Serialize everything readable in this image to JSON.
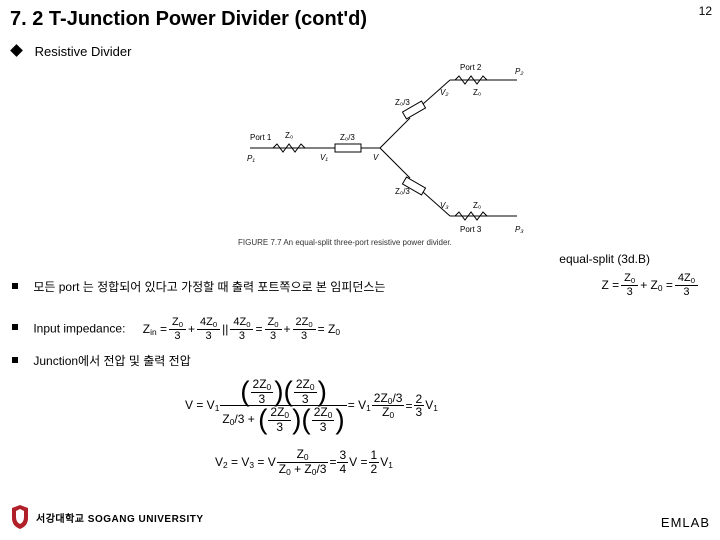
{
  "title": "7. 2 T-Junction Power Divider (cont'd)",
  "page_number": "12",
  "subheading": "Resistive Divider",
  "figure_caption": "FIGURE 7.7   An equal-split three-port resistive power divider.",
  "equal_split_label": "equal-split (3d.B)",
  "diagram_labels": {
    "port1": "Port 1",
    "port2": "Port 2",
    "port3": "Port 3",
    "p1": "P₁",
    "p2": "P₂",
    "p3": "P₃",
    "z0": "Z₀",
    "z03": "Z₀/3",
    "v": "V",
    "v1": "V₁",
    "v2": "V₂",
    "v3": "V₃"
  },
  "bullet1_text": "모든 port 는 정합되어 있다고 가정할 때 출력 포트쪽으로 본 임피던스는",
  "bullet1_eq_html": "<span class='eq'>Z = </span><span class='frac'><span class='n'>Z<sub>0</sub></span><span class='d'>3</span></span><span class='eq'> + Z<sub>0</sub> = </span><span class='frac'><span class='n'>4Z<sub>0</sub></span><span class='d'>3</span></span>",
  "bullet2_text": "Input impedance:",
  "bullet2_eq_html": "<span class='eq'>Z<sub>in</sub> = </span><span class='frac'><span class='n'>Z<sub>0</sub></span><span class='d'>3</span></span><span class='eq'> + </span><span class='frac'><span class='n'>4Z<sub>0</sub></span><span class='d'>3</span></span><span class='eq'> || </span><span class='frac'><span class='n'>4Z<sub>0</sub></span><span class='d'>3</span></span><span class='eq'> = </span><span class='frac'><span class='n'>Z<sub>0</sub></span><span class='d'>3</span></span><span class='eq'> + </span><span class='frac'><span class='n'>2Z<sub>0</sub></span><span class='d'>3</span></span><span class='eq'> = Z<sub>0</sub></span>",
  "bullet3_text": "Junction에서 전압 및 출력 전압",
  "eqV_html": "<span class='eq'>V = V<sub>1</sub> </span><span class='lfrac'><span class='n'><span class='paren'>(</span><span class='lfrac'><span class='n'>2Z<sub>0</sub></span><span class='d'>3</span></span><span class='paren'>)(</span><span class='lfrac'><span class='n'>2Z<sub>0</sub></span><span class='d'>3</span></span><span class='paren'>)</span></span><span class='d'>Z<sub>0</sub>/3 + <span class='paren'>(</span><span class='lfrac'><span class='n'>2Z<sub>0</sub></span><span class='d'>3</span></span><span class='paren'>)(</span><span class='lfrac'><span class='n'>2Z<sub>0</sub></span><span class='d'>3</span></span><span class='paren'>)</span></span></span><span class='eq'> = V<sub>1</sub> </span><span class='lfrac'><span class='n'>2Z<sub>0</sub>/3</span><span class='d'>Z<sub>0</sub></span></span><span class='eq'> = </span><span class='lfrac'><span class='n'>2</span><span class='d'>3</span></span><span class='eq'> V<sub>1</sub></span>",
  "eqV2_html": "<span class='eq'>V<sub>2</sub> = V<sub>3</sub> = V </span><span class='lfrac'><span class='n'>Z<sub>0</sub></span><span class='d'>Z<sub>0</sub> + Z<sub>0</sub>/3</span></span><span class='eq'> = </span><span class='lfrac'><span class='n'>3</span><span class='d'>4</span></span><span class='eq'> V = </span><span class='lfrac'><span class='n'>1</span><span class='d'>2</span></span><span class='eq'> V<sub>1</sub></span>",
  "footer": {
    "university": "서강대학교 SOGANG UNIVERSITY",
    "lab": "EMLAB"
  },
  "colors": {
    "bg": "#ffffff",
    "text": "#000000",
    "logo": "#b02028"
  }
}
